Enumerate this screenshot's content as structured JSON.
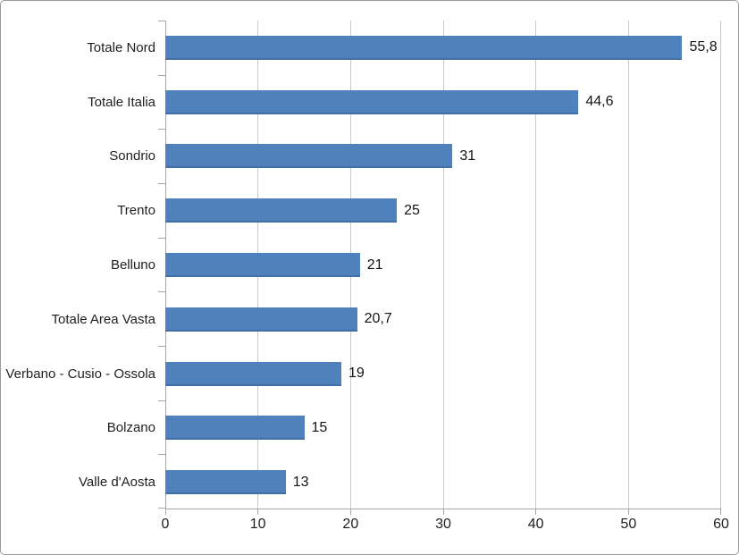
{
  "chart_data": {
    "type": "bar",
    "orientation": "horizontal",
    "title": "",
    "xlabel": "",
    "ylabel": "",
    "categories": [
      "Totale Nord",
      "Totale Italia",
      "Sondrio",
      "Trento",
      "Belluno",
      "Totale Area Vasta",
      "Verbano - Cusio - Ossola",
      "Bolzano",
      "Valle d'Aosta"
    ],
    "values": [
      55.8,
      44.6,
      31,
      25,
      21,
      20.7,
      19,
      15,
      13
    ],
    "value_labels": [
      "55,8",
      "44,6",
      "31",
      "25",
      "21",
      "20,7",
      "19",
      "15",
      "13"
    ],
    "xlim": [
      0,
      60
    ],
    "x_ticks": [
      0,
      10,
      20,
      30,
      40,
      50,
      60
    ],
    "x_tick_labels": [
      "0",
      "10",
      "20",
      "30",
      "40",
      "50",
      "60"
    ],
    "grid": "vertical-gridlines",
    "legend": "none",
    "bar_color": "#4f81bd",
    "axis_color": "#a6a6a6",
    "gridline_color": "#c9c9c9"
  }
}
